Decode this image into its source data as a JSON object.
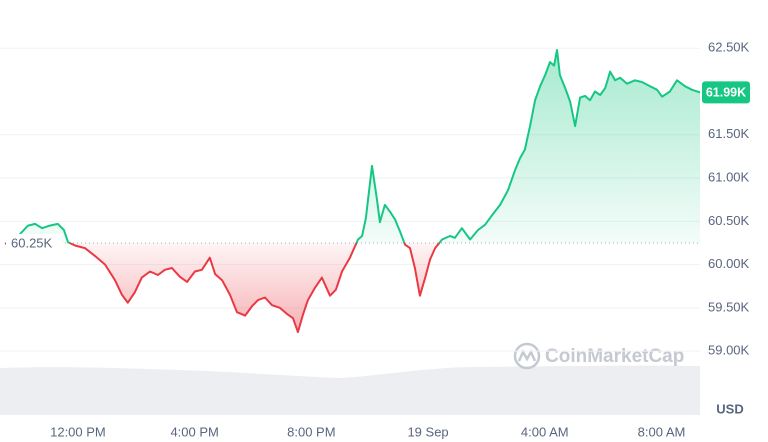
{
  "chart_data": {
    "type": "line",
    "x": [
      9.5,
      9.84,
      10.29,
      10.53,
      10.77,
      11.04,
      11.31,
      11.52,
      11.66,
      11.9,
      12.24,
      12.58,
      12.93,
      13.27,
      13.51,
      13.71,
      13.95,
      14.19,
      14.47,
      14.74,
      14.98,
      15.22,
      15.49,
      15.74,
      16.01,
      16.25,
      16.52,
      16.7,
      16.94,
      17.21,
      17.45,
      17.73,
      17.97,
      18.17,
      18.41,
      18.65,
      18.92,
      19.16,
      19.37,
      19.54,
      19.71,
      19.88,
      20.12,
      20.36,
      20.64,
      20.84,
      21.05,
      21.32,
      21.6,
      21.74,
      21.87,
      22.08,
      22.25,
      22.35,
      22.52,
      22.7,
      22.87,
      23.04,
      23.21,
      23.38,
      23.55,
      23.72,
      23.9,
      24.07,
      24.24,
      24.48,
      24.75,
      24.92,
      25.16,
      25.44,
      25.71,
      25.95,
      26.19,
      26.47,
      26.74,
      26.98,
      27.15,
      27.32,
      27.5,
      27.67,
      27.84,
      28.01,
      28.18,
      28.32,
      28.42,
      28.52,
      28.7,
      28.87,
      29.04,
      29.21,
      29.38,
      29.55,
      29.72,
      29.9,
      30.07,
      30.24,
      30.41,
      30.58,
      30.82,
      31.09,
      31.33,
      31.61,
      31.85,
      32.02,
      32.29,
      32.53,
      32.81,
      33.05,
      33.32
    ],
    "values": [
      60240,
      60290,
      60450,
      60470,
      60420,
      60450,
      60470,
      60400,
      60260,
      60220,
      60190,
      60100,
      60000,
      59820,
      59650,
      59560,
      59680,
      59850,
      59920,
      59880,
      59940,
      59960,
      59860,
      59800,
      59920,
      59940,
      60080,
      59890,
      59820,
      59650,
      59450,
      59410,
      59520,
      59590,
      59620,
      59530,
      59500,
      59430,
      59380,
      59220,
      59420,
      59590,
      59730,
      59850,
      59640,
      59710,
      59920,
      60080,
      60290,
      60330,
      60540,
      61140,
      60750,
      60490,
      60690,
      60610,
      60520,
      60380,
      60230,
      60190,
      59960,
      59640,
      59850,
      60060,
      60190,
      60290,
      60330,
      60310,
      60420,
      60290,
      60400,
      60460,
      60570,
      60690,
      60860,
      61090,
      61230,
      61330,
      61610,
      61900,
      62060,
      62190,
      62340,
      62300,
      62480,
      62190,
      62040,
      61880,
      61600,
      61930,
      61950,
      61900,
      62000,
      61960,
      62040,
      62230,
      62130,
      62160,
      62090,
      62130,
      62110,
      62060,
      62020,
      61940,
      62000,
      62130,
      62060,
      62020,
      61990
    ],
    "xlim": [
      9.5,
      33.32
    ],
    "xticks": [
      {
        "value": 12,
        "label": "12:00 PM"
      },
      {
        "value": 16,
        "label": "4:00 PM"
      },
      {
        "value": 20,
        "label": "8:00 PM"
      },
      {
        "value": 24,
        "label": "19 Sep"
      },
      {
        "value": 28,
        "label": "4:00 AM"
      },
      {
        "value": 32,
        "label": "8:00 AM"
      }
    ],
    "ylim": [
      58250,
      63000
    ],
    "yticks": [
      {
        "value": 59000,
        "label": "59.00K"
      },
      {
        "value": 59500,
        "label": "59.50K"
      },
      {
        "value": 60000,
        "label": "60.00K"
      },
      {
        "value": 60500,
        "label": "60.50K"
      },
      {
        "value": 61000,
        "label": "61.00K"
      },
      {
        "value": 61500,
        "label": "61.50K"
      },
      {
        "value": 62500,
        "label": "62.50K"
      }
    ],
    "grid": true,
    "baseline": {
      "value": 60250,
      "label": "60.25K"
    },
    "current": {
      "value": 61990,
      "label": "61.99K"
    },
    "up_color": "#16c784",
    "down_color": "#ea3943",
    "currency": "USD",
    "watermark": "CoinMarketCap"
  }
}
